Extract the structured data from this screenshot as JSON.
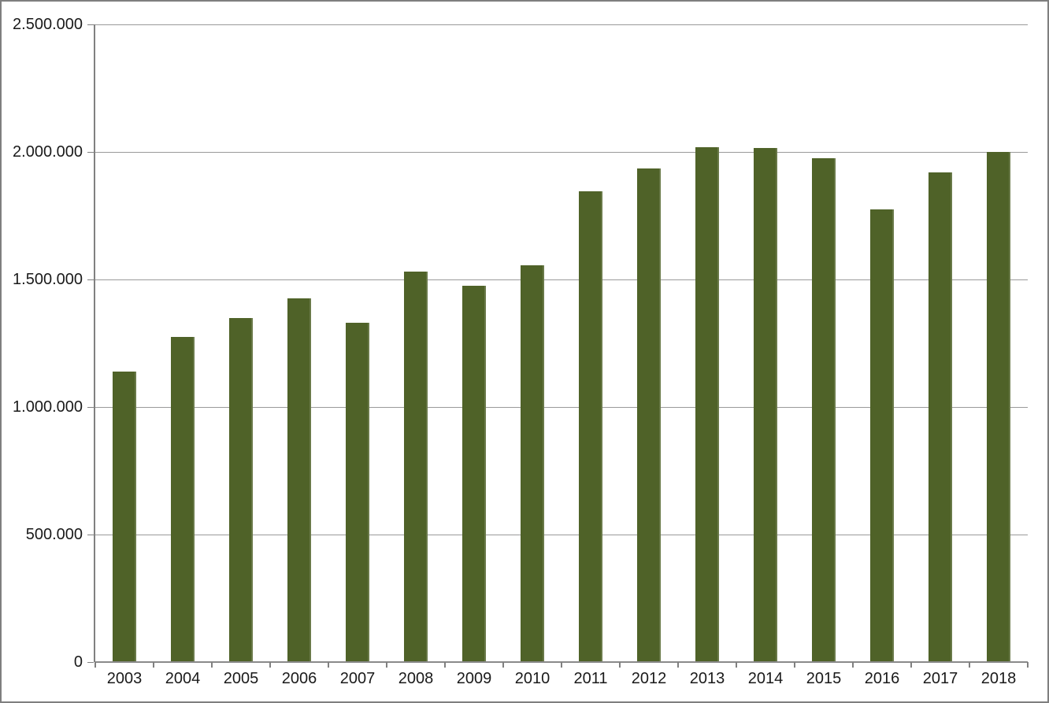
{
  "chart_data": {
    "type": "bar",
    "title": "",
    "xlabel": "",
    "ylabel": "",
    "categories": [
      "2003",
      "2004",
      "2005",
      "2006",
      "2007",
      "2008",
      "2009",
      "2010",
      "2011",
      "2012",
      "2013",
      "2014",
      "2015",
      "2016",
      "2017",
      "2018"
    ],
    "values": [
      1140000,
      1275000,
      1350000,
      1425000,
      1330000,
      1530000,
      1475000,
      1555000,
      1845000,
      1935000,
      2020000,
      2015000,
      1975000,
      1775000,
      1920000,
      2000000
    ],
    "ylim": [
      0,
      2500000
    ],
    "ytick_interval": 500000,
    "ytick_labels": [
      "0",
      "500.000",
      "1.000.000",
      "1.500.000",
      "2.000.000",
      "2.500.000"
    ],
    "grid": true,
    "legend": false,
    "colors": {
      "bar": "#4F6228",
      "gridline": "#9a9a9a",
      "axis": "#808080",
      "text": "#1a1a1a",
      "background": "#ffffff",
      "frame_border": "#7f7f7f"
    }
  }
}
